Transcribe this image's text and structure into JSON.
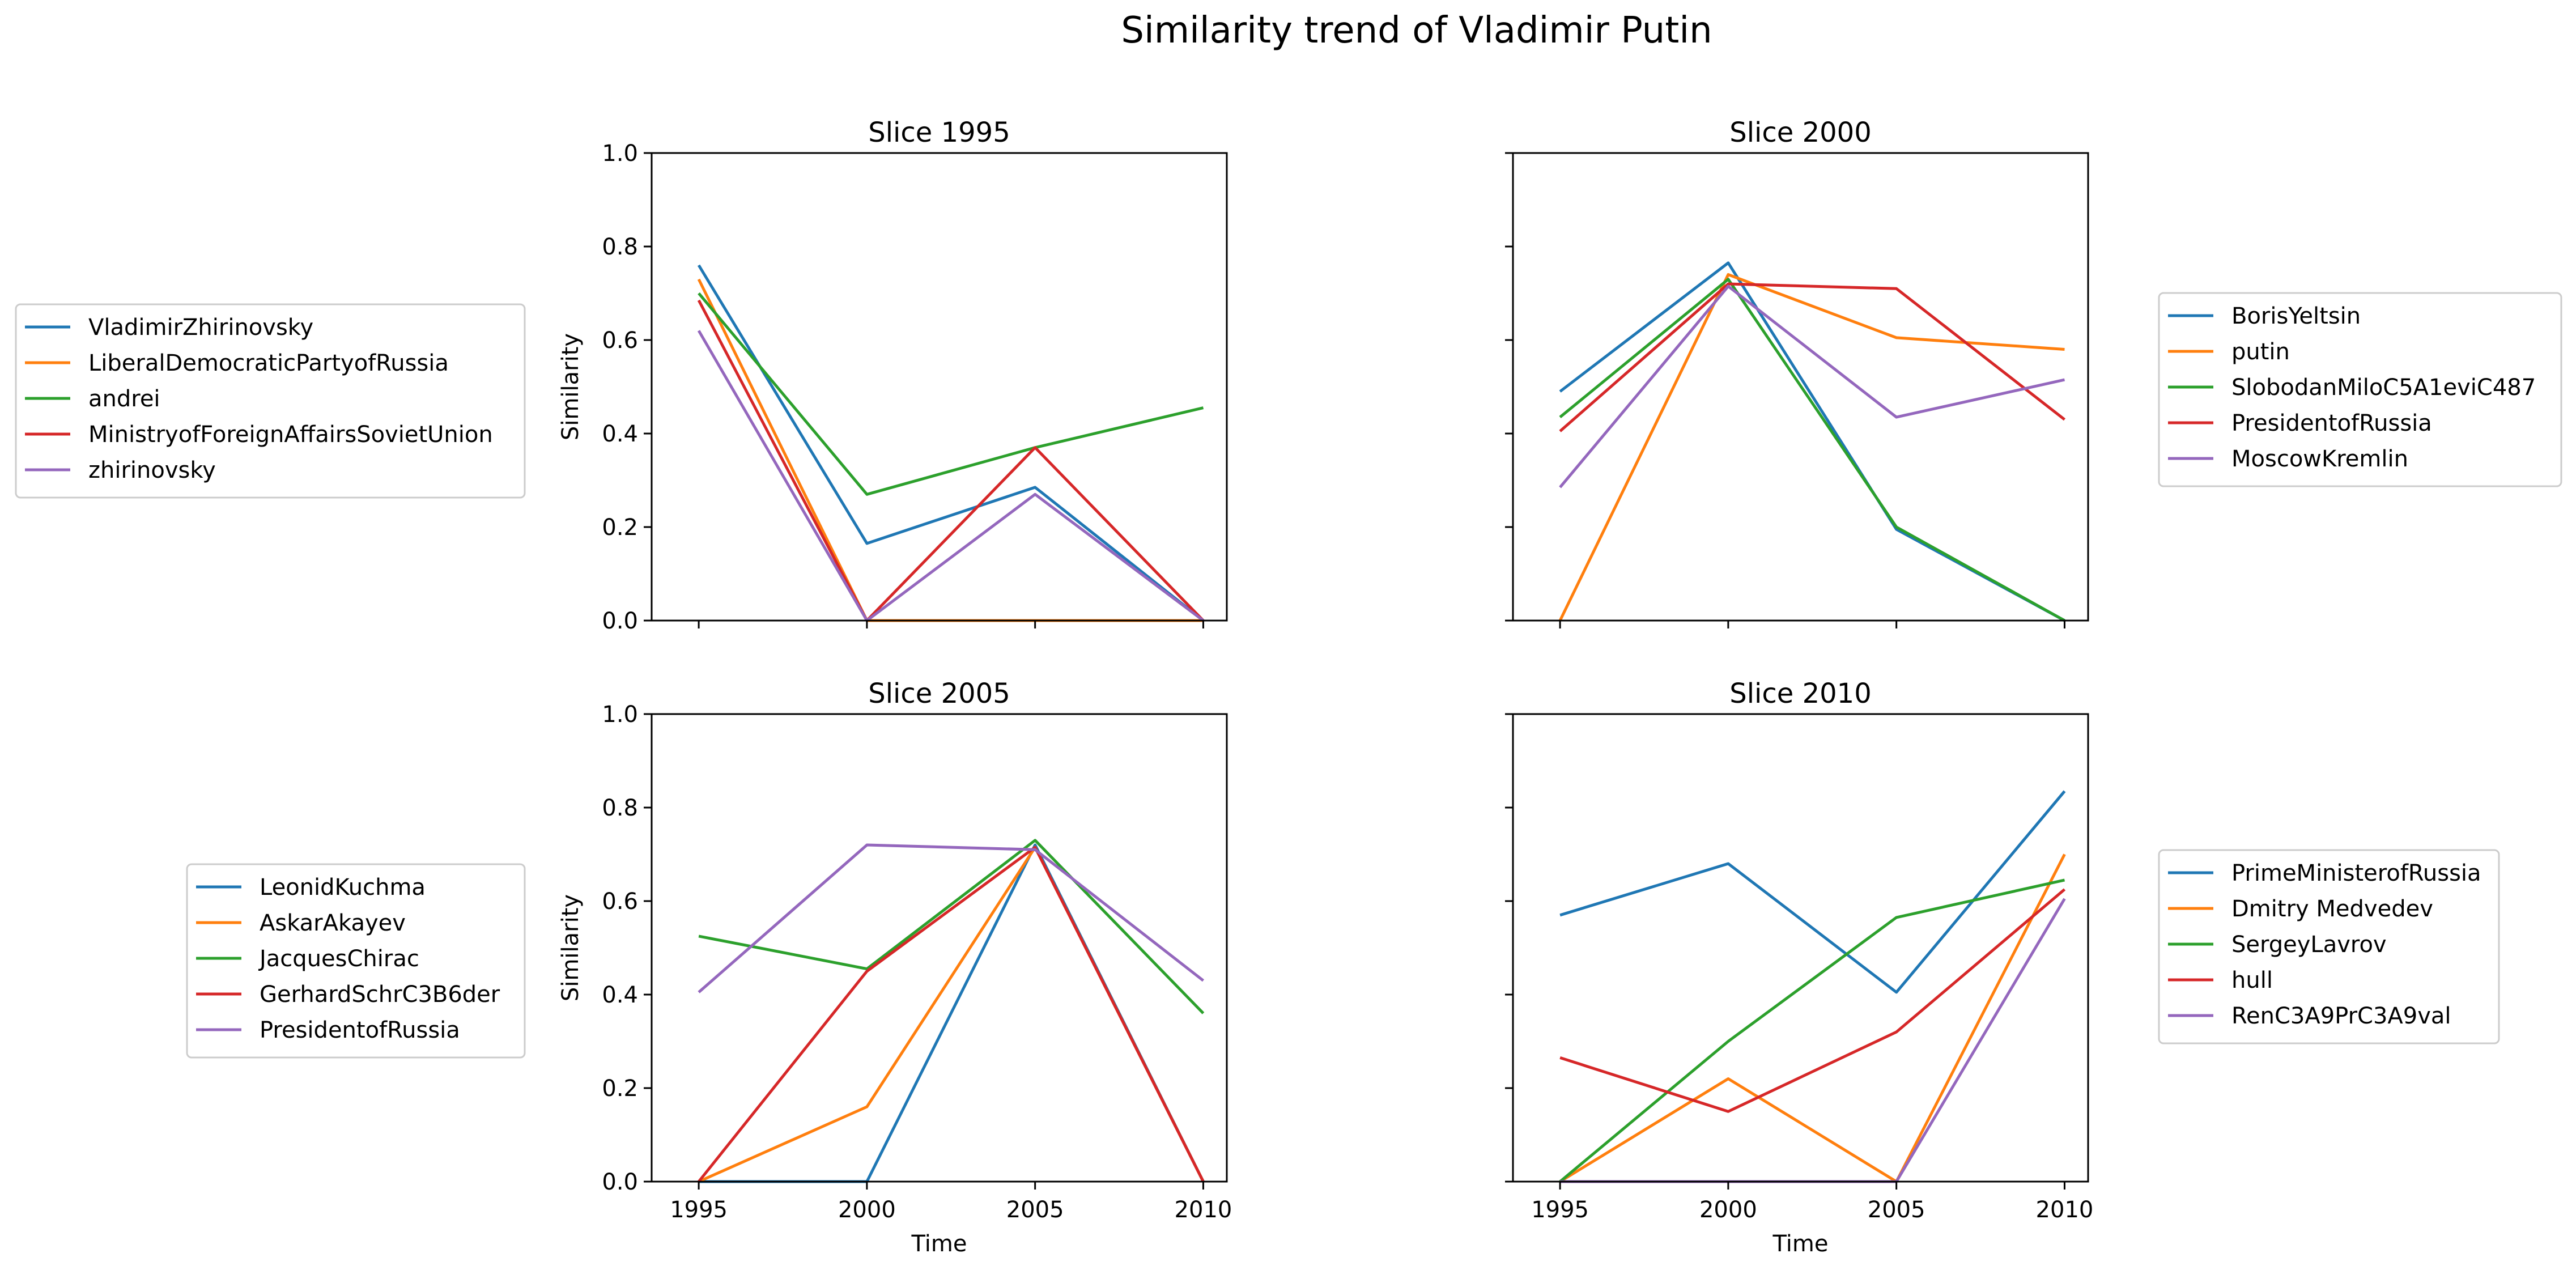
{
  "figure": {
    "title": "Similarity trend of Vladimir Putin"
  },
  "colors": [
    "#1f77b4",
    "#ff7f0e",
    "#2ca02c",
    "#d62728",
    "#9467bd"
  ],
  "chart_data": [
    {
      "type": "line",
      "title": "Slice 1995",
      "xlabel": "",
      "ylabel": "Similarity",
      "x": [
        1995,
        2000,
        2005,
        2010
      ],
      "xlim": [
        1993.6,
        2010.7
      ],
      "ylim": [
        0,
        1
      ],
      "yticks": [
        0.0,
        0.2,
        0.4,
        0.6,
        0.8,
        1.0
      ],
      "grid": false,
      "legend": "left",
      "series": [
        {
          "name": "VladimirZhirinovsky",
          "values": [
            0.76,
            0.165,
            0.285,
            0.0
          ]
        },
        {
          "name": "LiberalDemocraticPartyofRussia",
          "values": [
            0.73,
            0.0,
            0.0,
            0.0
          ]
        },
        {
          "name": "andrei",
          "values": [
            0.7,
            0.27,
            0.37,
            0.455
          ]
        },
        {
          "name": "MinistryofForeignAffairsSovietUnion",
          "values": [
            0.685,
            0.0,
            0.37,
            0.0
          ]
        },
        {
          "name": "zhirinovsky",
          "values": [
            0.62,
            0.0,
            0.27,
            0.0
          ]
        }
      ]
    },
    {
      "type": "line",
      "title": "Slice 2000",
      "xlabel": "",
      "ylabel": "",
      "x": [
        1995,
        2000,
        2005,
        2010
      ],
      "xlim": [
        1993.6,
        2010.7
      ],
      "ylim": [
        0,
        1
      ],
      "yticks": [
        0.0,
        0.2,
        0.4,
        0.6,
        0.8,
        1.0
      ],
      "grid": false,
      "legend": "right",
      "series": [
        {
          "name": "BorisYeltsin",
          "values": [
            0.49,
            0.765,
            0.195,
            0.0
          ]
        },
        {
          "name": "putin",
          "values": [
            0.0,
            0.74,
            0.605,
            0.58
          ]
        },
        {
          "name": "SlobodanMiloC5A1eviC487",
          "values": [
            0.435,
            0.73,
            0.2,
            0.0
          ]
        },
        {
          "name": "PresidentofRussia",
          "values": [
            0.405,
            0.72,
            0.71,
            0.43
          ]
        },
        {
          "name": "MoscowKremlin",
          "values": [
            0.285,
            0.715,
            0.435,
            0.515
          ]
        }
      ]
    },
    {
      "type": "line",
      "title": "Slice 2005",
      "xlabel": "Time",
      "ylabel": "Similarity",
      "x": [
        1995,
        2000,
        2005,
        2010
      ],
      "xlim": [
        1993.6,
        2010.7
      ],
      "ylim": [
        0,
        1
      ],
      "yticks": [
        0.0,
        0.2,
        0.4,
        0.6,
        0.8,
        1.0
      ],
      "grid": false,
      "legend": "left",
      "series": [
        {
          "name": "LeonidKuchma",
          "values": [
            0.0,
            0.0,
            0.72,
            0.0
          ]
        },
        {
          "name": "AskarAkayev",
          "values": [
            0.0,
            0.16,
            0.715,
            0.0
          ]
        },
        {
          "name": "JacquesChirac",
          "values": [
            0.525,
            0.455,
            0.73,
            0.36
          ]
        },
        {
          "name": "GerhardSchrC3B6der",
          "values": [
            0.0,
            0.45,
            0.715,
            0.0
          ]
        },
        {
          "name": "PresidentofRussia",
          "values": [
            0.405,
            0.72,
            0.71,
            0.43
          ]
        }
      ]
    },
    {
      "type": "line",
      "title": "Slice 2010",
      "xlabel": "Time",
      "ylabel": "",
      "x": [
        1995,
        2000,
        2005,
        2010
      ],
      "xlim": [
        1993.6,
        2010.7
      ],
      "ylim": [
        0,
        1
      ],
      "yticks": [
        0.0,
        0.2,
        0.4,
        0.6,
        0.8,
        1.0
      ],
      "grid": false,
      "legend": "right",
      "series": [
        {
          "name": "PrimeMinisterofRussia",
          "values": [
            0.57,
            0.68,
            0.405,
            0.835
          ]
        },
        {
          "name": "Dmitry Medvedev",
          "values": [
            0.0,
            0.22,
            0.0,
            0.7
          ]
        },
        {
          "name": "SergeyLavrov",
          "values": [
            0.0,
            0.3,
            0.565,
            0.645
          ]
        },
        {
          "name": "hull",
          "values": [
            0.265,
            0.15,
            0.32,
            0.625
          ]
        },
        {
          "name": "RenC3A9PrC3A9val",
          "values": [
            0.0,
            0.0,
            0.0,
            0.605
          ]
        }
      ]
    }
  ]
}
